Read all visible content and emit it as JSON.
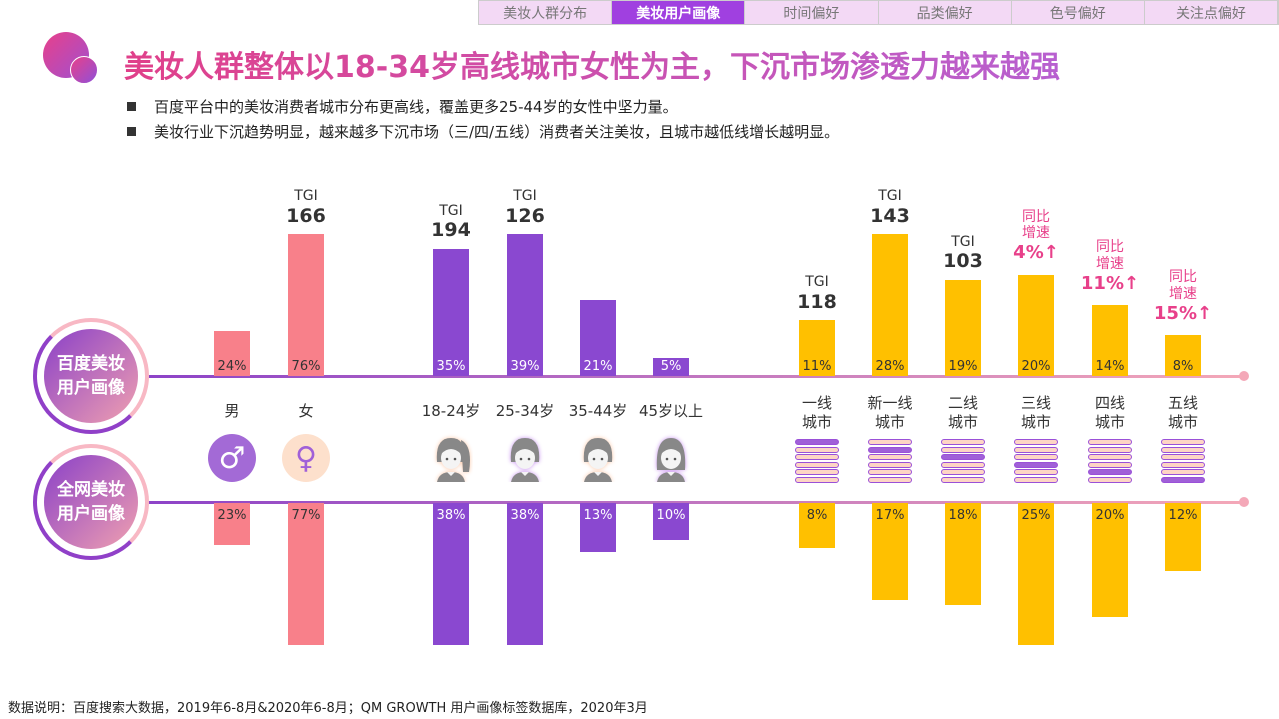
{
  "tabs": [
    {
      "label": "美妆人群分布",
      "active": false
    },
    {
      "label": "美妆用户画像",
      "active": true
    },
    {
      "label": "时间偏好",
      "active": false
    },
    {
      "label": "品类偏好",
      "active": false
    },
    {
      "label": "色号偏好",
      "active": false
    },
    {
      "label": "关注点偏好",
      "active": false
    }
  ],
  "title": "美妆人群整体以18-34岁高线城市女性为主，下沉市场渗透力越来越强",
  "bullets": [
    "百度平台中的美妆消费者城市分布更高线，覆盖更多25-44岁的女性中坚力量。",
    "美妆行业下沉趋势明显，越来越多下沉市场（三/四/五线）消费者关注美妆，且城市越低线增长越明显。"
  ],
  "row_labels": {
    "top": [
      "百度美妆",
      "用户画像"
    ],
    "bottom": [
      "全网美妆",
      "用户画像"
    ]
  },
  "tgi_label": "TGI",
  "growth_label": [
    "同比",
    "增速"
  ],
  "footer": "数据说明：百度搜索大数据，2019年6-8月&2020年6-8月；QM GROWTH 用户画像标签数据库，2020年3月",
  "colors": {
    "gender": "#f8808a",
    "age": "#8a48d0",
    "city": "#ffc000",
    "accent": "#e8408a"
  },
  "chart_data": {
    "type": "bar",
    "title": "美妆用户画像",
    "groups": [
      {
        "name": "gender",
        "categories": [
          "男",
          "女"
        ],
        "baidu": [
          24,
          76
        ],
        "all_web": [
          23,
          77
        ],
        "tgi": [
          null,
          166
        ],
        "growth": [
          null,
          null
        ],
        "icons": [
          "male-icon",
          "female-icon"
        ]
      },
      {
        "name": "age",
        "categories": [
          "18-24岁",
          "25-34岁",
          "35-44岁",
          "45岁以上"
        ],
        "baidu": [
          35,
          39,
          21,
          5
        ],
        "all_web": [
          38,
          38,
          13,
          10
        ],
        "tgi": [
          194,
          126,
          null,
          null
        ],
        "growth": [
          null,
          null,
          null,
          null
        ],
        "icons": [
          "girl-ponytail-avatar-icon",
          "young-woman-avatar-icon",
          "woman-avatar-icon",
          "older-woman-avatar-icon"
        ]
      },
      {
        "name": "city",
        "categories": [
          "一线\n城市",
          "新一线\n城市",
          "二线\n城市",
          "三线\n城市",
          "四线\n城市",
          "五线\n城市"
        ],
        "baidu": [
          11,
          28,
          19,
          20,
          14,
          8
        ],
        "all_web": [
          8,
          17,
          18,
          25,
          20,
          12
        ],
        "tgi": [
          118,
          143,
          103,
          null,
          null,
          null
        ],
        "growth": [
          null,
          null,
          null,
          "4%↑",
          "11%↑",
          "15%↑"
        ],
        "icons": [
          "city-tier-stack-icon"
        ]
      }
    ],
    "units": "%"
  }
}
